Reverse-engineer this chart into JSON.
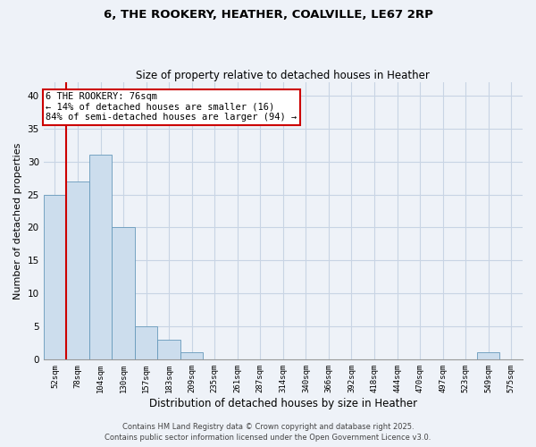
{
  "title1": "6, THE ROOKERY, HEATHER, COALVILLE, LE67 2RP",
  "title2": "Size of property relative to detached houses in Heather",
  "xlabel": "Distribution of detached houses by size in Heather",
  "ylabel": "Number of detached properties",
  "bar_color": "#ccdded",
  "bar_edge_color": "#6699bb",
  "grid_color": "#c8d4e4",
  "background_color": "#eef2f8",
  "categories": [
    "52sqm",
    "78sqm",
    "104sqm",
    "130sqm",
    "157sqm",
    "183sqm",
    "209sqm",
    "235sqm",
    "261sqm",
    "287sqm",
    "314sqm",
    "340sqm",
    "366sqm",
    "392sqm",
    "418sqm",
    "444sqm",
    "470sqm",
    "497sqm",
    "523sqm",
    "549sqm",
    "575sqm"
  ],
  "values": [
    25,
    27,
    31,
    20,
    5,
    3,
    1,
    0,
    0,
    0,
    0,
    0,
    0,
    0,
    0,
    0,
    0,
    0,
    0,
    1,
    0
  ],
  "vline_x": 0.5,
  "vline_color": "#cc0000",
  "annotation_text": "6 THE ROOKERY: 76sqm\n← 14% of detached houses are smaller (16)\n84% of semi-detached houses are larger (94) →",
  "ylim": [
    0,
    42
  ],
  "yticks": [
    0,
    5,
    10,
    15,
    20,
    25,
    30,
    35,
    40
  ],
  "footer1": "Contains HM Land Registry data © Crown copyright and database right 2025.",
  "footer2": "Contains public sector information licensed under the Open Government Licence v3.0."
}
